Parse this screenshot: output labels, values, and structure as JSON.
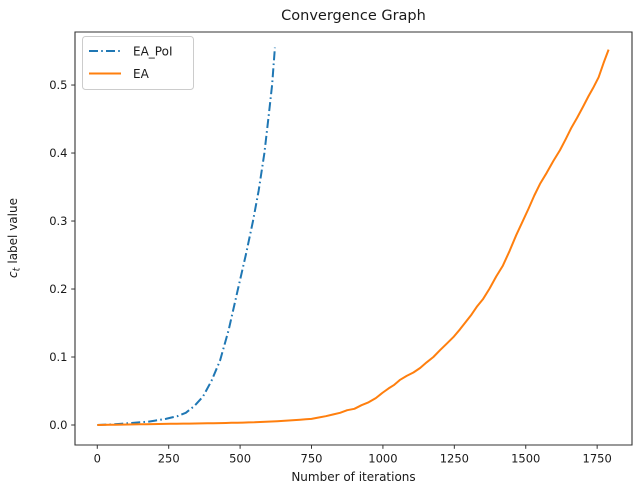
{
  "figure": {
    "background": "#ffffff",
    "text_color": "#1a1a1a",
    "spine_color": "#333333"
  },
  "labels": {
    "ylabel_var": "c",
    "ylabel_sub": "t",
    "ylabel_rest": "label value"
  },
  "chart_data": {
    "type": "line",
    "title": "Convergence Graph",
    "xlabel": "Number of iterations",
    "ylabel": "c_t label value",
    "grid": false,
    "xlim": [
      -78,
      1872
    ],
    "ylim": [
      -0.0294,
      0.578
    ],
    "xticks": [
      0,
      250,
      500,
      750,
      1000,
      1250,
      1500,
      1750
    ],
    "yticks": [
      0.0,
      0.1,
      0.2,
      0.3,
      0.4,
      0.5
    ],
    "legend": {
      "position": "upper left",
      "entries": [
        {
          "label": "EA_PoI",
          "color": "#1f77b4",
          "linestyle": "dashdot"
        },
        {
          "label": "EA",
          "color": "#ff7f0e",
          "linestyle": "solid"
        }
      ]
    },
    "series": [
      {
        "name": "EA_PoI",
        "color": "#1f77b4",
        "linestyle": "dashdot",
        "points": [
          [
            0,
            0.0
          ],
          [
            60,
            0.001
          ],
          [
            120,
            0.003
          ],
          [
            180,
            0.005
          ],
          [
            240,
            0.009
          ],
          [
            280,
            0.013
          ],
          [
            310,
            0.018
          ],
          [
            340,
            0.028
          ],
          [
            370,
            0.042
          ],
          [
            400,
            0.065
          ],
          [
            430,
            0.095
          ],
          [
            460,
            0.14
          ],
          [
            490,
            0.195
          ],
          [
            520,
            0.25
          ],
          [
            545,
            0.3
          ],
          [
            565,
            0.345
          ],
          [
            585,
            0.4
          ],
          [
            600,
            0.455
          ],
          [
            612,
            0.5
          ],
          [
            622,
            0.555
          ]
        ]
      },
      {
        "name": "EA",
        "color": "#ff7f0e",
        "linestyle": "solid",
        "points": [
          [
            0,
            0.0
          ],
          [
            150,
            0.001
          ],
          [
            300,
            0.002
          ],
          [
            450,
            0.003
          ],
          [
            550,
            0.004
          ],
          [
            650,
            0.006
          ],
          [
            750,
            0.009
          ],
          [
            800,
            0.013
          ],
          [
            850,
            0.018
          ],
          [
            900,
            0.024
          ],
          [
            950,
            0.033
          ],
          [
            1000,
            0.048
          ],
          [
            1060,
            0.066
          ],
          [
            1130,
            0.083
          ],
          [
            1200,
            0.11
          ],
          [
            1270,
            0.14
          ],
          [
            1350,
            0.185
          ],
          [
            1420,
            0.235
          ],
          [
            1490,
            0.3
          ],
          [
            1550,
            0.355
          ],
          [
            1620,
            0.405
          ],
          [
            1680,
            0.452
          ],
          [
            1720,
            0.483
          ],
          [
            1755,
            0.512
          ],
          [
            1790,
            0.553
          ]
        ]
      }
    ]
  }
}
